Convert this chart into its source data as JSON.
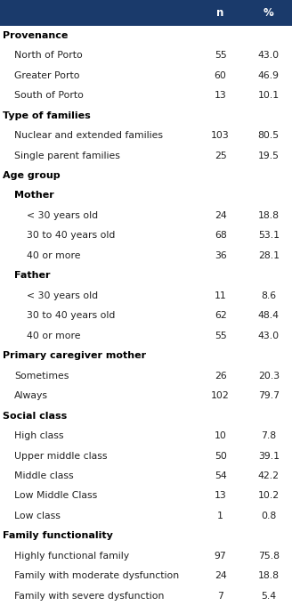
{
  "header_cols": [
    "n",
    "%"
  ],
  "rows": [
    {
      "label": "Provenance",
      "n": "",
      "pct": "",
      "style": "section",
      "indent": 0
    },
    {
      "label": "North of Porto",
      "n": "55",
      "pct": "43.0",
      "style": "data",
      "indent": 1
    },
    {
      "label": "Greater Porto",
      "n": "60",
      "pct": "46.9",
      "style": "data",
      "indent": 1
    },
    {
      "label": "South of Porto",
      "n": "13",
      "pct": "10.1",
      "style": "data",
      "indent": 1
    },
    {
      "label": "Type of families",
      "n": "",
      "pct": "",
      "style": "section",
      "indent": 0
    },
    {
      "label": "Nuclear and extended families",
      "n": "103",
      "pct": "80.5",
      "style": "data",
      "indent": 1
    },
    {
      "label": "Single parent families",
      "n": "25",
      "pct": "19.5",
      "style": "data",
      "indent": 1
    },
    {
      "label": "Age group",
      "n": "",
      "pct": "",
      "style": "section",
      "indent": 0
    },
    {
      "label": "Mother",
      "n": "",
      "pct": "",
      "style": "subsection",
      "indent": 1
    },
    {
      "label": "< 30 years old",
      "n": "24",
      "pct": "18.8",
      "style": "data",
      "indent": 2
    },
    {
      "label": "30 to 40 years old",
      "n": "68",
      "pct": "53.1",
      "style": "data",
      "indent": 2
    },
    {
      "label": "40 or more",
      "n": "36",
      "pct": "28.1",
      "style": "data",
      "indent": 2
    },
    {
      "label": "Father",
      "n": "",
      "pct": "",
      "style": "subsection",
      "indent": 1
    },
    {
      "label": "< 30 years old",
      "n": "11",
      "pct": "8.6",
      "style": "data",
      "indent": 2
    },
    {
      "label": "30 to 40 years old",
      "n": "62",
      "pct": "48.4",
      "style": "data",
      "indent": 2
    },
    {
      "label": "40 or more",
      "n": "55",
      "pct": "43.0",
      "style": "data",
      "indent": 2
    },
    {
      "label": "Primary caregiver mother",
      "n": "",
      "pct": "",
      "style": "section",
      "indent": 0
    },
    {
      "label": "Sometimes",
      "n": "26",
      "pct": "20.3",
      "style": "data",
      "indent": 1
    },
    {
      "label": "Always",
      "n": "102",
      "pct": "79.7",
      "style": "data",
      "indent": 1
    },
    {
      "label": "Social class",
      "n": "",
      "pct": "",
      "style": "section",
      "indent": 0
    },
    {
      "label": "High class",
      "n": "10",
      "pct": "7.8",
      "style": "data",
      "indent": 1
    },
    {
      "label": "Upper middle class",
      "n": "50",
      "pct": "39.1",
      "style": "data",
      "indent": 1
    },
    {
      "label": "Middle class",
      "n": "54",
      "pct": "42.2",
      "style": "data",
      "indent": 1
    },
    {
      "label": "Low Middle Class",
      "n": "13",
      "pct": "10.2",
      "style": "data",
      "indent": 1
    },
    {
      "label": "Low class",
      "n": "1",
      "pct": "0.8",
      "style": "data",
      "indent": 1
    },
    {
      "label": "Family functionality",
      "n": "",
      "pct": "",
      "style": "section",
      "indent": 0
    },
    {
      "label": "Highly functional family",
      "n": "97",
      "pct": "75.8",
      "style": "data",
      "indent": 1
    },
    {
      "label": "Family with moderate dysfunction",
      "n": "24",
      "pct": "18.8",
      "style": "data",
      "indent": 1
    },
    {
      "label": "Family with severe dysfunction",
      "n": "7",
      "pct": "5.4",
      "style": "data",
      "indent": 1
    }
  ],
  "header_color": "#1a3a6b",
  "section_color": "#000000",
  "data_color": "#222222",
  "bg_color": "#ffffff",
  "font_size_header": 8.5,
  "font_size_section": 8.0,
  "font_size_data": 7.8
}
